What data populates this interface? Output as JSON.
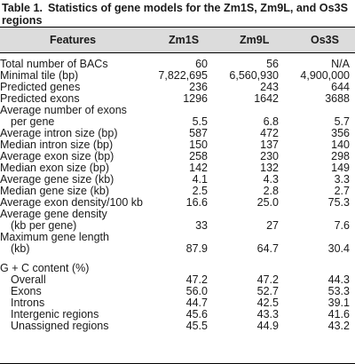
{
  "caption": {
    "label": "Table 1.",
    "text": "Statistics of gene models for the Zm1S, Zm9L, and Os3S regions"
  },
  "headers": {
    "feature": "Features",
    "c1": "Zm1S",
    "c2": "Zm9L",
    "c3": "Os3S"
  },
  "rows": [
    {
      "f": "Total number of BACs",
      "c1": "60",
      "c2": "56",
      "c3": "N/A"
    },
    {
      "f": "Minimal tile (bp)",
      "c1": "7,822,695",
      "c2": "6,560,930",
      "c3": "4,900,000"
    },
    {
      "f": "Predicted genes",
      "c1": "236",
      "c2": "243",
      "c3": "644"
    },
    {
      "f": "Predicted exons",
      "c1": "1296",
      "c2": "1642",
      "c3": "3688"
    },
    {
      "f": "Average number of exons",
      "c1": "",
      "c2": "",
      "c3": ""
    },
    {
      "f": "per gene",
      "c1": "5.5",
      "c2": "6.8",
      "c3": "5.7"
    },
    {
      "f": "Average intron size (bp)",
      "c1": "587",
      "c2": "472",
      "c3": "356"
    },
    {
      "f": "Median intron size (bp)",
      "c1": "150",
      "c2": "137",
      "c3": "140"
    },
    {
      "f": "Average exon size (bp)",
      "c1": "258",
      "c2": "230",
      "c3": "298"
    },
    {
      "f": "Median exon size (bp)",
      "c1": "142",
      "c2": "132",
      "c3": "149"
    },
    {
      "f": "Average gene size (kb)",
      "c1": "4.1",
      "c2": "4.3",
      "c3": "3.3"
    },
    {
      "f": "Median gene size (kb)",
      "c1": "2.5",
      "c2": "2.8",
      "c3": "2.7"
    },
    {
      "f": "Average exon density/100 kb",
      "c1": "16.6",
      "c2": "25.0",
      "c3": "75.3"
    },
    {
      "f": "Average gene density",
      "c1": "",
      "c2": "",
      "c3": ""
    },
    {
      "f": "(kb per gene)",
      "c1": "33",
      "c2": "27",
      "c3": "7.6"
    },
    {
      "f": "Maximum gene length",
      "c1": "",
      "c2": "",
      "c3": ""
    },
    {
      "f": "(kb)",
      "c1": "87.9",
      "c2": "64.7",
      "c3": "30.4"
    },
    {
      "f": "G + C content (%)",
      "c1": "",
      "c2": "",
      "c3": ""
    },
    {
      "f": "Overall",
      "c1": "47.2",
      "c2": "47.2",
      "c3": "44.3"
    },
    {
      "f": "Exons",
      "c1": "56.0",
      "c2": "52.7",
      "c3": "53.3"
    },
    {
      "f": "Introns",
      "c1": "44.7",
      "c2": "42.5",
      "c3": "39.1"
    },
    {
      "f": "Intergenic regions",
      "c1": "45.6",
      "c2": "43.3",
      "c3": "41.6"
    },
    {
      "f": "Unassigned regions",
      "c1": "45.5",
      "c2": "44.9",
      "c3": "43.2"
    }
  ]
}
